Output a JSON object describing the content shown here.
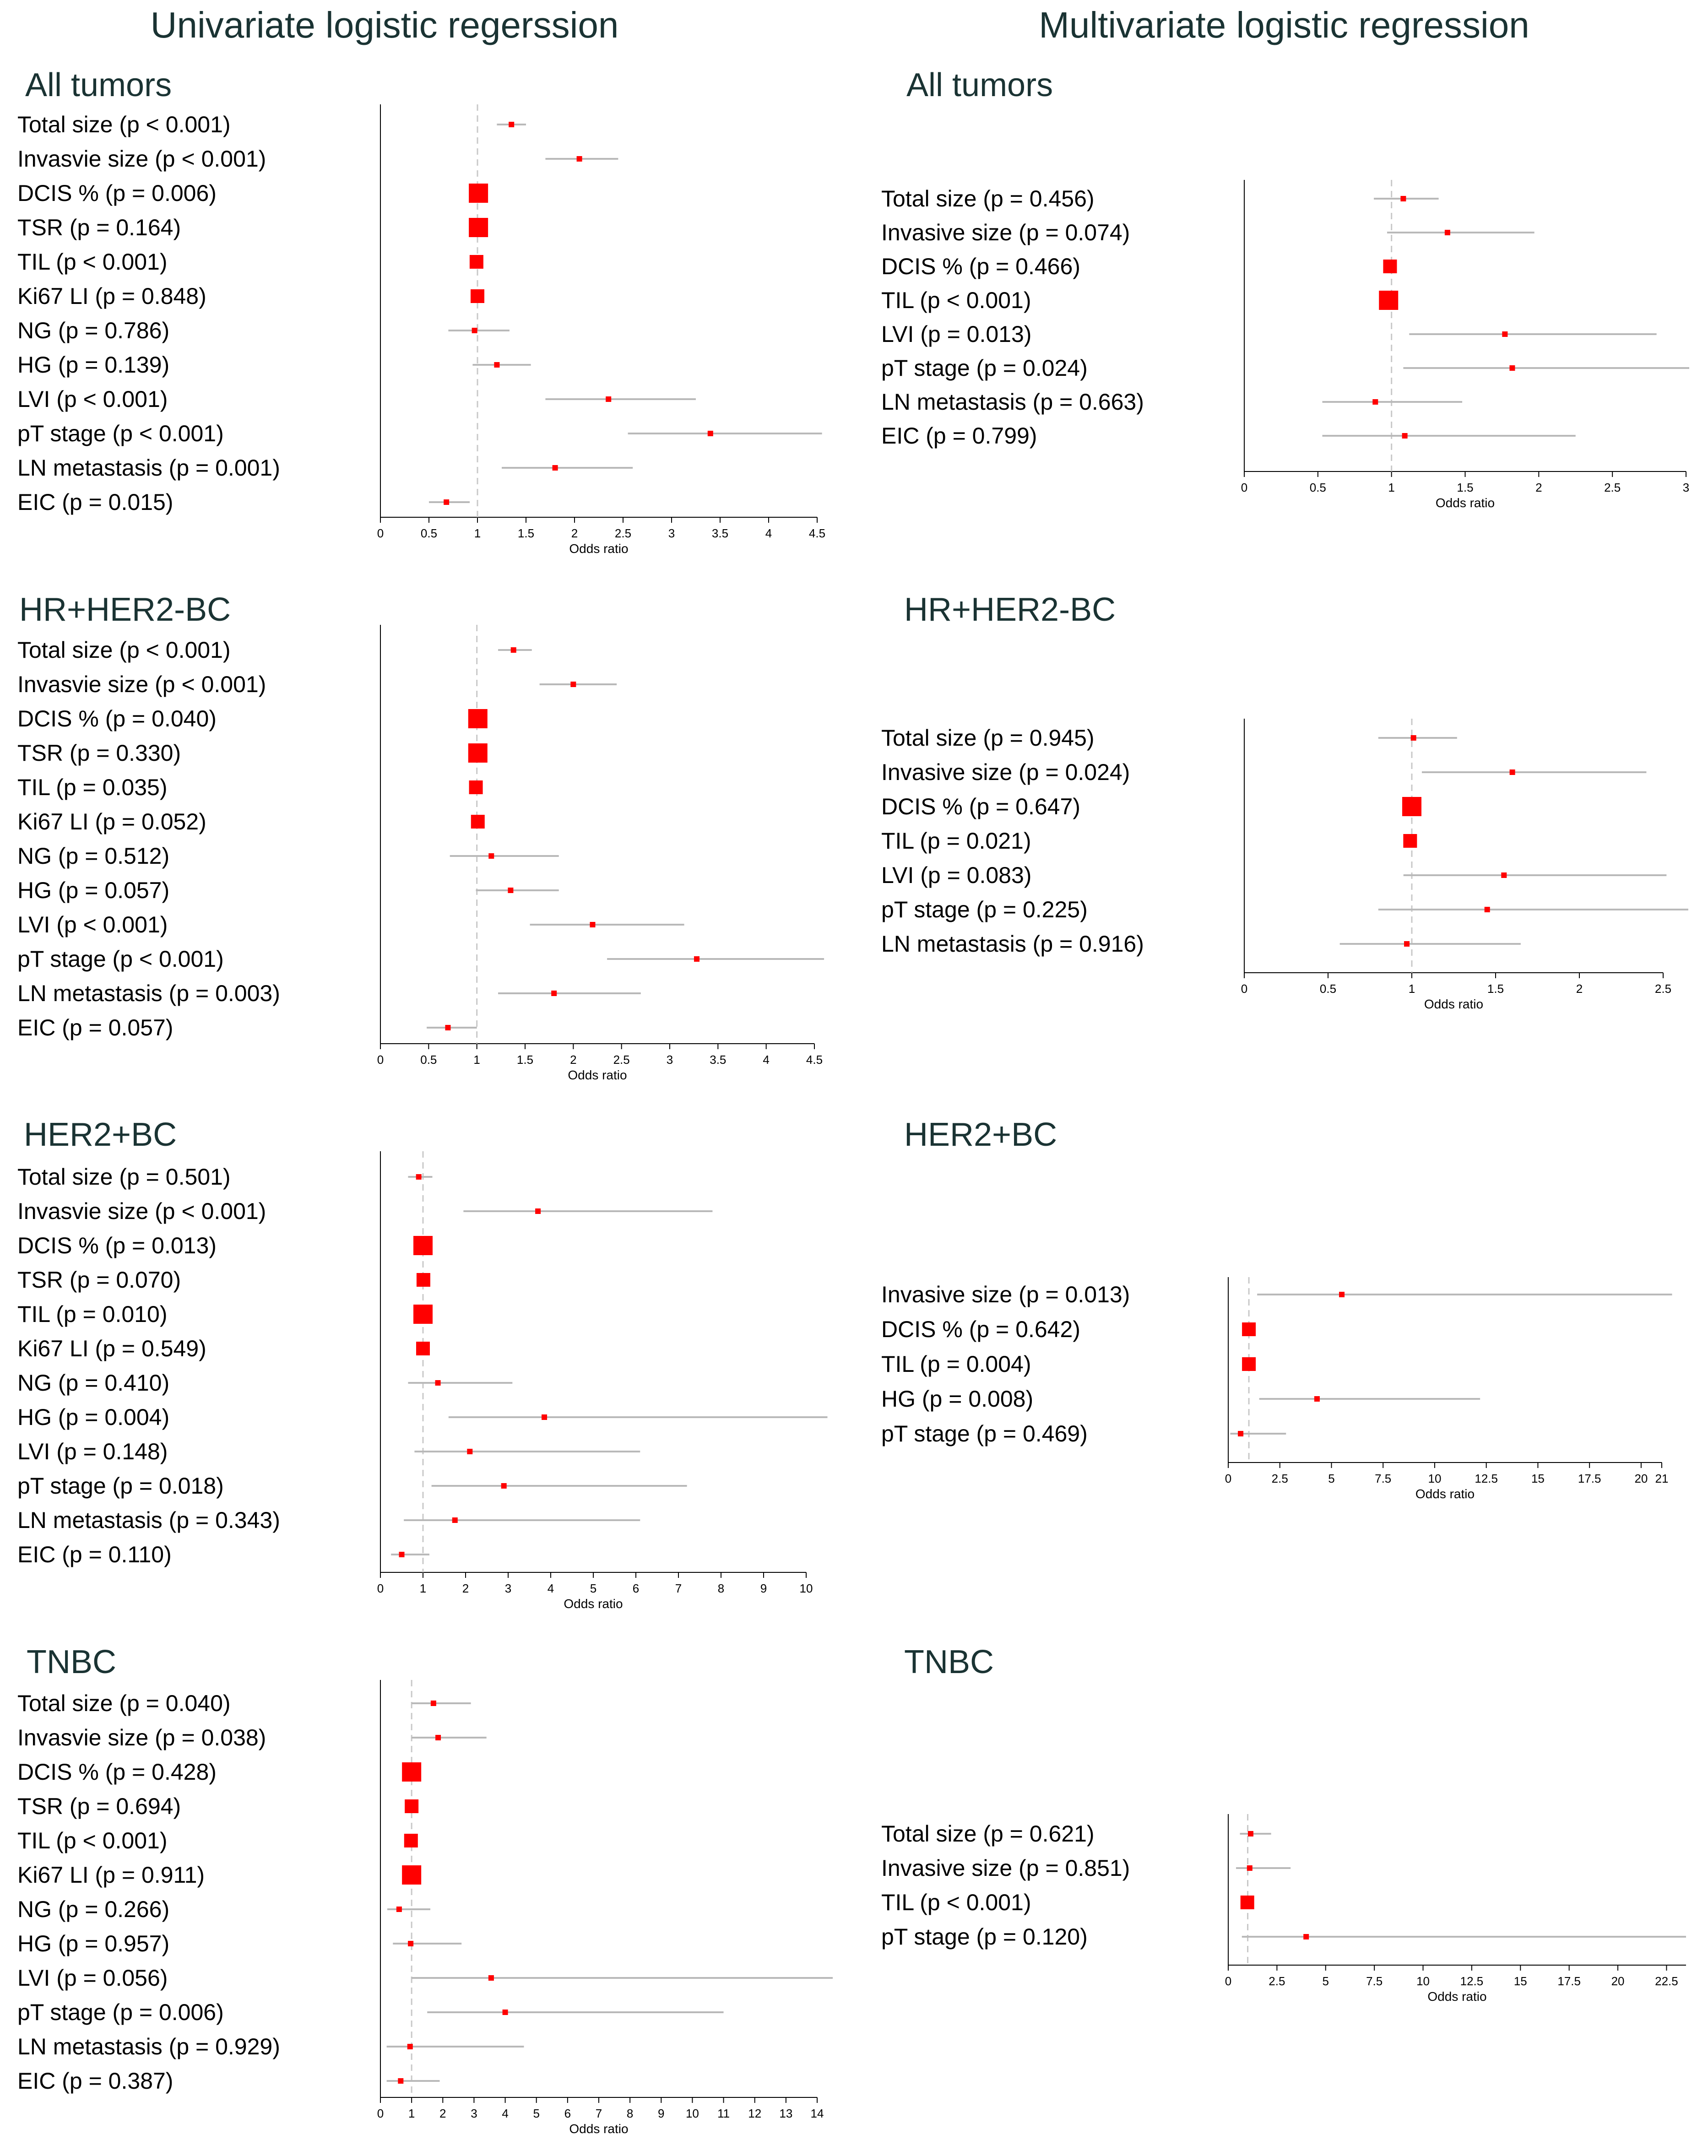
{
  "column_titles": [
    "Univariate logistic regerssion",
    "Multivariate logistic regression"
  ],
  "colors": {
    "point": "#ff0000",
    "ci": "#b9b9b9",
    "refline": "#c8c8c8",
    "axis": "#000000",
    "title": "#1a3333"
  },
  "chart_data": [
    {
      "type": "forest",
      "column": "Univariate logistic regerssion",
      "title": "All tumors",
      "xlabel": "Odds ratio",
      "xlim": [
        0,
        4.5
      ],
      "ref": 1,
      "ticks": [
        "0",
        "0.5",
        "1",
        "1.5",
        "2",
        "2.5",
        "3",
        "3.5",
        "4",
        "4.5"
      ],
      "tick_values": [
        0,
        0.5,
        1,
        1.5,
        2,
        2.5,
        3,
        3.5,
        4,
        4.5
      ],
      "rows": [
        {
          "label": "Total size (p < 0.001)",
          "or": 1.35,
          "lo": 1.2,
          "hi": 1.5,
          "box": "s"
        },
        {
          "label": "Invasvie size (p < 0.001)",
          "or": 2.05,
          "lo": 1.7,
          "hi": 2.45,
          "box": "s"
        },
        {
          "label": "DCIS % (p = 0.006)",
          "or": 1.01,
          "lo": 1.0,
          "hi": 1.02,
          "box": "l"
        },
        {
          "label": "TSR (p = 0.164)",
          "or": 1.01,
          "lo": 0.99,
          "hi": 1.02,
          "box": "l"
        },
        {
          "label": "TIL (p < 0.001)",
          "or": 0.99,
          "lo": 0.98,
          "hi": 1.0,
          "box": "m"
        },
        {
          "label": "Ki67 LI (p = 0.848)",
          "or": 1.0,
          "lo": 0.99,
          "hi": 1.01,
          "box": "m"
        },
        {
          "label": "NG (p = 0.786)",
          "or": 0.97,
          "lo": 0.7,
          "hi": 1.33,
          "box": "s"
        },
        {
          "label": "HG (p = 0.139)",
          "or": 1.2,
          "lo": 0.95,
          "hi": 1.55,
          "box": "s"
        },
        {
          "label": "LVI (p < 0.001)",
          "or": 2.35,
          "lo": 1.7,
          "hi": 3.25,
          "box": "s"
        },
        {
          "label": "pT stage (p < 0.001)",
          "or": 3.4,
          "lo": 2.55,
          "hi": 4.55,
          "box": "s"
        },
        {
          "label": "LN metastasis (p = 0.001)",
          "or": 1.8,
          "lo": 1.25,
          "hi": 2.6,
          "box": "s"
        },
        {
          "label": "EIC (p = 0.015)",
          "or": 0.68,
          "lo": 0.5,
          "hi": 0.92,
          "box": "s"
        }
      ]
    },
    {
      "type": "forest",
      "column": "Multivariate logistic regression",
      "title": "All tumors",
      "xlabel": "Odds ratio",
      "xlim": [
        0,
        3
      ],
      "ref": 1,
      "ticks": [
        "0",
        "0.5",
        "1",
        "1.5",
        "2",
        "2.5",
        "3"
      ],
      "tick_values": [
        0,
        0.5,
        1,
        1.5,
        2,
        2.5,
        3
      ],
      "rows": [
        {
          "label": "Total size (p = 0.456)",
          "or": 1.08,
          "lo": 0.88,
          "hi": 1.32,
          "box": "s"
        },
        {
          "label": "Invasive size (p = 0.074)",
          "or": 1.38,
          "lo": 0.97,
          "hi": 1.97,
          "box": "s"
        },
        {
          "label": "DCIS % (p = 0.466)",
          "or": 0.99,
          "lo": 0.98,
          "hi": 1.01,
          "box": "m"
        },
        {
          "label": "TIL (p < 0.001)",
          "or": 0.98,
          "lo": 0.97,
          "hi": 0.99,
          "box": "l"
        },
        {
          "label": "LVI (p = 0.013)",
          "or": 1.77,
          "lo": 1.12,
          "hi": 2.8,
          "box": "s"
        },
        {
          "label": "pT stage (p = 0.024)",
          "or": 1.82,
          "lo": 1.08,
          "hi": 3.08,
          "box": "s"
        },
        {
          "label": "LN metastasis (p = 0.663)",
          "or": 0.89,
          "lo": 0.53,
          "hi": 1.48,
          "box": "s"
        },
        {
          "label": "EIC (p = 0.799)",
          "or": 1.09,
          "lo": 0.53,
          "hi": 2.25,
          "box": "s"
        }
      ]
    },
    {
      "type": "forest",
      "column": "Univariate logistic regerssion",
      "title": "HR+HER2-BC",
      "xlabel": "Odds ratio",
      "xlim": [
        0,
        4.5
      ],
      "ref": 1,
      "ticks": [
        "0",
        "0.5",
        "1",
        "1.5",
        "2",
        "2.5",
        "3",
        "3.5",
        "4",
        "4.5"
      ],
      "tick_values": [
        0,
        0.5,
        1,
        1.5,
        2,
        2.5,
        3,
        3.5,
        4,
        4.5
      ],
      "rows": [
        {
          "label": "Total size (p < 0.001)",
          "or": 1.38,
          "lo": 1.22,
          "hi": 1.57,
          "box": "s"
        },
        {
          "label": "Invasvie size (p < 0.001)",
          "or": 2.0,
          "lo": 1.65,
          "hi": 2.45,
          "box": "s"
        },
        {
          "label": "DCIS % (p = 0.040)",
          "or": 1.01,
          "lo": 1.0,
          "hi": 1.02,
          "box": "l"
        },
        {
          "label": "TSR (p = 0.330)",
          "or": 1.01,
          "lo": 0.99,
          "hi": 1.02,
          "box": "l"
        },
        {
          "label": "TIL (p = 0.035)",
          "or": 0.99,
          "lo": 0.98,
          "hi": 1.0,
          "box": "m"
        },
        {
          "label": "Ki67 LI (p = 0.052)",
          "or": 1.01,
          "lo": 1.0,
          "hi": 1.02,
          "box": "m"
        },
        {
          "label": "NG (p = 0.512)",
          "or": 1.15,
          "lo": 0.72,
          "hi": 1.85,
          "box": "s"
        },
        {
          "label": "HG (p = 0.057)",
          "or": 1.35,
          "lo": 0.99,
          "hi": 1.85,
          "box": "s"
        },
        {
          "label": "LVI (p < 0.001)",
          "or": 2.2,
          "lo": 1.55,
          "hi": 3.15,
          "box": "s"
        },
        {
          "label": "pT stage (p < 0.001)",
          "or": 3.28,
          "lo": 2.35,
          "hi": 4.6,
          "box": "s"
        },
        {
          "label": "LN metastasis (p = 0.003)",
          "or": 1.8,
          "lo": 1.22,
          "hi": 2.7,
          "box": "s"
        },
        {
          "label": "EIC (p = 0.057)",
          "or": 0.7,
          "lo": 0.48,
          "hi": 1.0,
          "box": "s"
        }
      ]
    },
    {
      "type": "forest",
      "column": "Multivariate logistic regression",
      "title": "HR+HER2-BC",
      "xlabel": "Odds ratio",
      "xlim": [
        0,
        2.5
      ],
      "ref": 1,
      "ticks": [
        "0",
        "0.5",
        "1",
        "1.5",
        "2",
        "2.5"
      ],
      "tick_values": [
        0,
        0.5,
        1,
        1.5,
        2,
        2.5
      ],
      "rows": [
        {
          "label": "Total size (p = 0.945)",
          "or": 1.01,
          "lo": 0.8,
          "hi": 1.27,
          "box": "s"
        },
        {
          "label": "Invasive size (p = 0.024)",
          "or": 1.6,
          "lo": 1.06,
          "hi": 2.4,
          "box": "s"
        },
        {
          "label": "DCIS % (p = 0.647)",
          "or": 1.0,
          "lo": 0.99,
          "hi": 1.01,
          "box": "l"
        },
        {
          "label": "TIL (p = 0.021)",
          "or": 0.99,
          "lo": 0.98,
          "hi": 1.0,
          "box": "m"
        },
        {
          "label": "LVI (p = 0.083)",
          "or": 1.55,
          "lo": 0.95,
          "hi": 2.52,
          "box": "s"
        },
        {
          "label": "pT stage (p = 0.225)",
          "or": 1.45,
          "lo": 0.8,
          "hi": 2.65,
          "box": "s"
        },
        {
          "label": "LN metastasis (p = 0.916)",
          "or": 0.97,
          "lo": 0.57,
          "hi": 1.65,
          "box": "s"
        }
      ]
    },
    {
      "type": "forest",
      "column": "Univariate logistic regerssion",
      "title": "HER2+BC",
      "xlabel": "Odds ratio",
      "xlim": [
        0,
        10
      ],
      "ref": 1,
      "ticks": [
        "0",
        "1",
        "2",
        "3",
        "4",
        "5",
        "6",
        "7",
        "8",
        "9",
        "10"
      ],
      "tick_values": [
        0,
        1,
        2,
        3,
        4,
        5,
        6,
        7,
        8,
        9,
        10
      ],
      "rows": [
        {
          "label": "Total size (p = 0.501)",
          "or": 0.9,
          "lo": 0.65,
          "hi": 1.22,
          "box": "s"
        },
        {
          "label": "Invasvie size (p < 0.001)",
          "or": 3.7,
          "lo": 1.95,
          "hi": 7.8,
          "box": "s"
        },
        {
          "label": "DCIS % (p = 0.013)",
          "or": 1.0,
          "lo": 0.99,
          "hi": 1.01,
          "box": "l"
        },
        {
          "label": "TSR (p = 0.070)",
          "or": 1.01,
          "lo": 1.0,
          "hi": 1.02,
          "box": "m"
        },
        {
          "label": "TIL (p = 0.010)",
          "or": 1.0,
          "lo": 0.99,
          "hi": 1.01,
          "box": "l"
        },
        {
          "label": "Ki67 LI (p = 0.549)",
          "or": 1.0,
          "lo": 0.99,
          "hi": 1.01,
          "box": "m"
        },
        {
          "label": "NG (p = 0.410)",
          "or": 1.35,
          "lo": 0.65,
          "hi": 3.1,
          "box": "s"
        },
        {
          "label": "HG (p = 0.004)",
          "or": 3.85,
          "lo": 1.6,
          "hi": 10.5,
          "box": "s"
        },
        {
          "label": "LVI (p = 0.148)",
          "or": 2.1,
          "lo": 0.8,
          "hi": 6.1,
          "box": "s"
        },
        {
          "label": "pT stage (p = 0.018)",
          "or": 2.9,
          "lo": 1.2,
          "hi": 7.2,
          "box": "s"
        },
        {
          "label": "LN metastasis (p = 0.343)",
          "or": 1.75,
          "lo": 0.55,
          "hi": 6.1,
          "box": "s"
        },
        {
          "label": "EIC (p = 0.110)",
          "or": 0.5,
          "lo": 0.25,
          "hi": 1.15,
          "box": "s"
        }
      ]
    },
    {
      "type": "forest",
      "column": "Multivariate logistic regression",
      "title": "HER2+BC",
      "xlabel": "Odds ratio",
      "xlim": [
        0,
        21
      ],
      "ref": 1,
      "ticks": [
        "0",
        "2.5",
        "5",
        "7.5",
        "10",
        "12.5",
        "15",
        "17.5",
        "20",
        "21"
      ],
      "tick_values": [
        0,
        2.5,
        5,
        7.5,
        10,
        12.5,
        15,
        17.5,
        20,
        21
      ],
      "rows": [
        {
          "label": "Invasive size (p = 0.013)",
          "or": 5.5,
          "lo": 1.4,
          "hi": 21.5,
          "box": "s"
        },
        {
          "label": "DCIS % (p = 0.642)",
          "or": 1.0,
          "lo": 0.99,
          "hi": 1.01,
          "box": "m"
        },
        {
          "label": "TIL (p = 0.004)",
          "or": 1.0,
          "lo": 0.98,
          "hi": 1.0,
          "box": "m"
        },
        {
          "label": "HG (p = 0.008)",
          "or": 4.3,
          "lo": 1.5,
          "hi": 12.2,
          "box": "s"
        },
        {
          "label": "pT stage (p = 0.469)",
          "or": 0.6,
          "lo": 0.1,
          "hi": 2.8,
          "box": "s"
        }
      ]
    },
    {
      "type": "forest",
      "column": "Univariate logistic regerssion",
      "title": "TNBC",
      "xlabel": "Odds ratio",
      "xlim": [
        0,
        14
      ],
      "ref": 1,
      "ticks": [
        "0",
        "1",
        "2",
        "3",
        "4",
        "5",
        "6",
        "7",
        "8",
        "9",
        "10",
        "11",
        "12",
        "13",
        "14"
      ],
      "tick_values": [
        0,
        1,
        2,
        3,
        4,
        5,
        6,
        7,
        8,
        9,
        10,
        11,
        12,
        13,
        14
      ],
      "rows": [
        {
          "label": "Total size (p = 0.040)",
          "or": 1.7,
          "lo": 1.0,
          "hi": 2.9,
          "box": "s"
        },
        {
          "label": "Invasvie size (p = 0.038)",
          "or": 1.85,
          "lo": 1.0,
          "hi": 3.4,
          "box": "s"
        },
        {
          "label": "DCIS % (p = 0.428)",
          "or": 1.0,
          "lo": 0.99,
          "hi": 1.01,
          "box": "l"
        },
        {
          "label": "TSR (p = 0.694)",
          "or": 1.0,
          "lo": 0.99,
          "hi": 1.01,
          "box": "m"
        },
        {
          "label": "TIL (p < 0.001)",
          "or": 0.98,
          "lo": 0.97,
          "hi": 0.99,
          "box": "m"
        },
        {
          "label": "Ki67 LI (p = 0.911)",
          "or": 1.0,
          "lo": 0.99,
          "hi": 1.01,
          "box": "l"
        },
        {
          "label": "NG (p = 0.266)",
          "or": 0.6,
          "lo": 0.22,
          "hi": 1.6,
          "box": "s"
        },
        {
          "label": "HG (p = 0.957)",
          "or": 0.97,
          "lo": 0.4,
          "hi": 2.6,
          "box": "s"
        },
        {
          "label": "LVI (p = 0.056)",
          "or": 3.55,
          "lo": 1.0,
          "hi": 14.5,
          "box": "s"
        },
        {
          "label": "pT stage (p = 0.006)",
          "or": 4.0,
          "lo": 1.5,
          "hi": 11.0,
          "box": "s"
        },
        {
          "label": "LN metastasis (p = 0.929)",
          "or": 0.95,
          "lo": 0.2,
          "hi": 4.6,
          "box": "s"
        },
        {
          "label": "EIC (p = 0.387)",
          "or": 0.65,
          "lo": 0.2,
          "hi": 1.9,
          "box": "s"
        }
      ]
    },
    {
      "type": "forest",
      "column": "Multivariate logistic regression",
      "title": "TNBC",
      "xlabel": "Odds ratio",
      "xlim": [
        0,
        23.5
      ],
      "ref": 1,
      "ticks": [
        "0",
        "2.5",
        "5",
        "7.5",
        "10",
        "12.5",
        "15",
        "17.5",
        "20",
        "22.5"
      ],
      "tick_values": [
        0,
        2.5,
        5,
        7.5,
        10,
        12.5,
        15,
        17.5,
        20,
        22.5
      ],
      "rows": [
        {
          "label": "Total size (p = 0.621)",
          "or": 1.15,
          "lo": 0.6,
          "hi": 2.2,
          "box": "s"
        },
        {
          "label": "Invasive size (p = 0.851)",
          "or": 1.1,
          "lo": 0.4,
          "hi": 3.2,
          "box": "s"
        },
        {
          "label": "TIL (p < 0.001)",
          "or": 0.98,
          "lo": 0.97,
          "hi": 0.99,
          "box": "m"
        },
        {
          "label": "pT stage (p = 0.120)",
          "or": 4.0,
          "lo": 0.7,
          "hi": 23.5,
          "box": "s"
        }
      ]
    }
  ]
}
